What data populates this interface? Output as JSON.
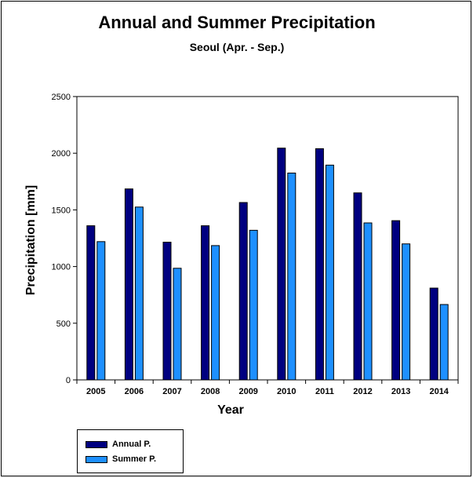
{
  "chart_data": {
    "type": "bar",
    "title": "Annual and Summer Precipitation",
    "subtitle": "Seoul (Apr. - Sep.)",
    "xlabel": "Year",
    "ylabel": "Precipitation [mm]",
    "ylim": [
      0,
      2500
    ],
    "yticks": [
      0,
      500,
      1000,
      1500,
      2000,
      2500
    ],
    "categories": [
      "2005",
      "2006",
      "2007",
      "2008",
      "2009",
      "2010",
      "2011",
      "2012",
      "2013",
      "2014"
    ],
    "series": [
      {
        "name": "Annual P.",
        "color": "#000080",
        "values": [
          1360,
          1685,
          1215,
          1360,
          1565,
          2045,
          2040,
          1650,
          1405,
          810
        ]
      },
      {
        "name": "Summer P.",
        "color": "#1e90ff",
        "values": [
          1220,
          1525,
          985,
          1185,
          1320,
          1825,
          1895,
          1385,
          1200,
          665
        ]
      }
    ],
    "grid": false,
    "legend_position": "bottom-left"
  }
}
